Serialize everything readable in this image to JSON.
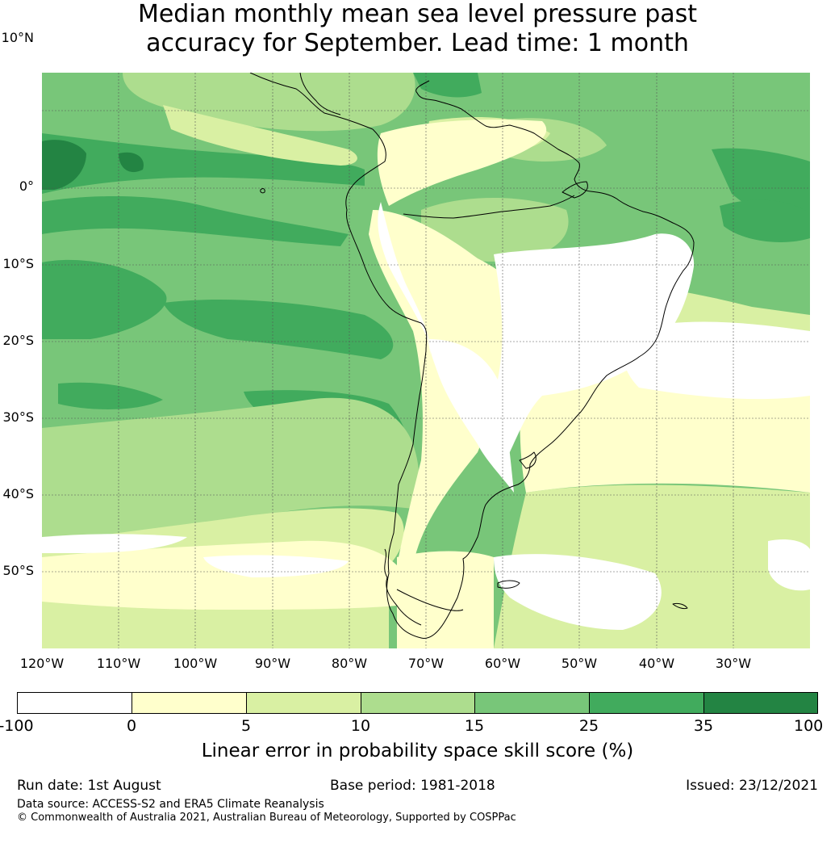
{
  "title": {
    "line1": "Median monthly mean sea level pressure past",
    "line2": "accuracy for September. Lead time: 1 month"
  },
  "map": {
    "lat_labels": [
      "10°N",
      "0°",
      "10°S",
      "20°S",
      "30°S",
      "40°S",
      "50°S"
    ],
    "lon_labels": [
      "120°W",
      "110°W",
      "100°W",
      "90°W",
      "80°W",
      "70°W",
      "60°W",
      "50°W",
      "40°W",
      "30°W"
    ],
    "ocean_base_color": "#78c679",
    "coastline_color": "#000000",
    "gridline_color": "#555555"
  },
  "colorbar": {
    "ticks": [
      "-100",
      "0",
      "5",
      "10",
      "15",
      "25",
      "35",
      "100"
    ],
    "colors": [
      "#ffffff",
      "#ffffcc",
      "#d9f0a3",
      "#addd8e",
      "#78c679",
      "#41ab5d",
      "#238443"
    ],
    "label": "Linear error in probability space skill score (%)"
  },
  "footer": {
    "run_date": "Run date: 1st August",
    "base_period": "Base period: 1981-2018",
    "issued": "Issued: 23/12/2021",
    "data_source": "Data source: ACCESS-S2 and ERA5 Climate Reanalysis",
    "copyright": "© Commonwealth of Australia 2021, Australian Bureau of Meteorology, Supported by COSPPac"
  }
}
